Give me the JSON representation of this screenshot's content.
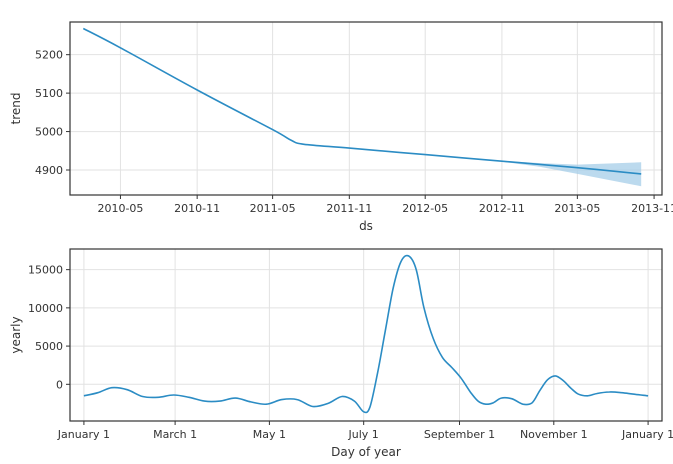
{
  "chart_data": [
    {
      "type": "line",
      "xlabel": "ds",
      "ylabel": "trend",
      "x_ticks": [
        "2010-05",
        "2010-11",
        "2011-05",
        "2011-11",
        "2012-05",
        "2012-11",
        "2013-05",
        "2013-11"
      ],
      "x_tick_values": [
        "2010-05-01",
        "2010-11-01",
        "2011-05-01",
        "2011-11-01",
        "2012-05-01",
        "2012-11-01",
        "2013-05-01",
        "2013-11-01"
      ],
      "xlim": [
        "2009-12-31",
        "2013-11-20"
      ],
      "y_ticks": [
        4900,
        5000,
        5100,
        5200
      ],
      "ylim": [
        4835,
        5285
      ],
      "grid": true,
      "series": [
        {
          "x": [
            "2010-02-01",
            "2010-05-01",
            "2010-11-01",
            "2011-05-01",
            "2011-06-15",
            "2011-07-15",
            "2011-11-01",
            "2012-05-01",
            "2012-11-01",
            "2013-05-01",
            "2013-10-01"
          ],
          "y": [
            5268,
            5218,
            5108,
            5005,
            4977,
            4967,
            4957,
            4940,
            4923,
            4906,
            4890
          ],
          "color": "#2b8cc4"
        }
      ],
      "uncertainty_band": {
        "x": [
          "2012-11-01",
          "2013-02-01",
          "2013-05-01",
          "2013-10-01"
        ],
        "lower": [
          4922,
          4908,
          4890,
          4858
        ],
        "upper": [
          4924,
          4918,
          4914,
          4920
        ],
        "color": "#a6cde8"
      }
    },
    {
      "type": "line",
      "xlabel": "Day of year",
      "ylabel": "yearly",
      "x_ticks": [
        "January 1",
        "March 1",
        "May 1",
        "July 1",
        "September 1",
        "November 1",
        "January 1"
      ],
      "x_tick_values": [
        0,
        59,
        120,
        181,
        243,
        304,
        365
      ],
      "xlim": [
        -9,
        374
      ],
      "y_ticks": [
        0,
        5000,
        10000,
        15000
      ],
      "y_tick_labels": [
        "0",
        "5000",
        "10000",
        "15000"
      ],
      "ylim": [
        -4800,
        17700
      ],
      "grid": true,
      "series": [
        {
          "x": [
            0,
            9,
            18,
            28,
            38,
            48,
            58,
            68,
            78,
            88,
            98,
            108,
            118,
            128,
            138,
            148,
            158,
            167,
            175,
            181,
            185,
            190,
            195,
            200,
            205,
            210,
            215,
            220,
            226,
            232,
            238,
            244,
            250,
            255,
            260,
            265,
            270,
            277,
            284,
            290,
            295,
            300,
            305,
            310,
            315,
            320,
            326,
            332,
            340,
            348,
            356,
            365
          ],
          "y": [
            -1500,
            -1100,
            -450,
            -700,
            -1600,
            -1700,
            -1400,
            -1700,
            -2200,
            -2200,
            -1800,
            -2300,
            -2600,
            -2000,
            -2000,
            -2900,
            -2500,
            -1600,
            -2200,
            -3600,
            -3000,
            1500,
            7000,
            12500,
            16000,
            16800,
            15000,
            10000,
            6000,
            3500,
            2200,
            800,
            -1000,
            -2200,
            -2600,
            -2400,
            -1800,
            -1900,
            -2600,
            -2400,
            -800,
            600,
            1100,
            500,
            -500,
            -1300,
            -1500,
            -1200,
            -1000,
            -1100,
            -1300,
            -1500
          ],
          "color": "#2b8cc4"
        }
      ]
    }
  ]
}
